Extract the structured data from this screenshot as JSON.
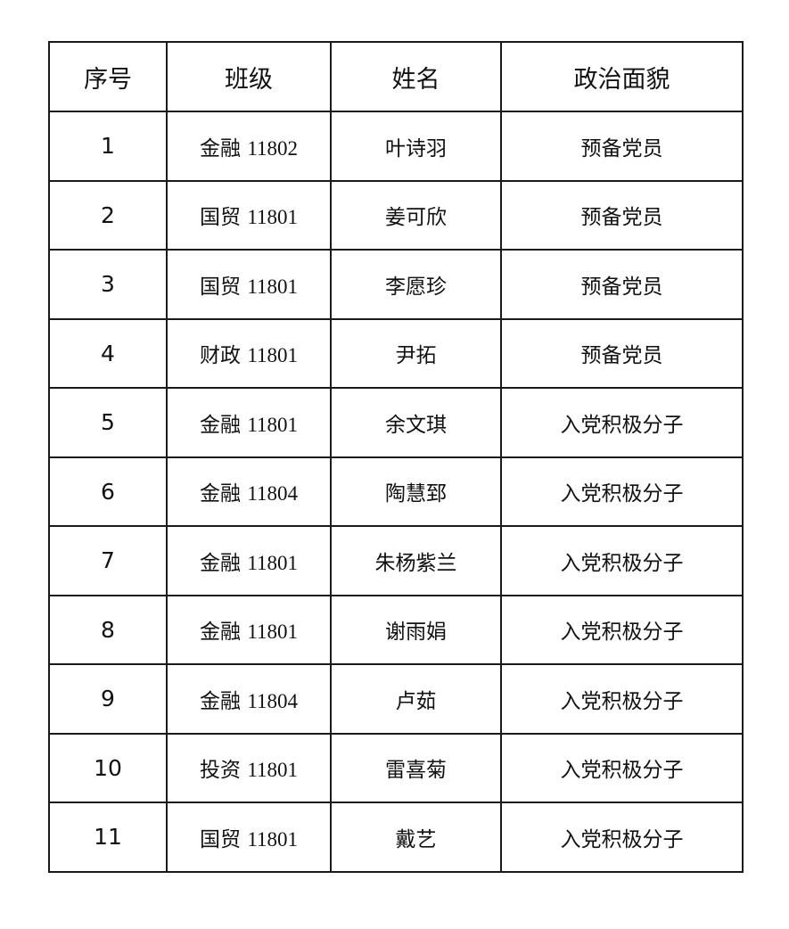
{
  "table": {
    "headers": [
      "序号",
      "班级",
      "姓名",
      "政治面貌"
    ],
    "rows": [
      {
        "index": "1",
        "class_major": "金融",
        "class_num": "11802",
        "name": "叶诗羽",
        "status": "预备党员"
      },
      {
        "index": "2",
        "class_major": "国贸",
        "class_num": "11801",
        "name": "姜可欣",
        "status": "预备党员"
      },
      {
        "index": "3",
        "class_major": "国贸",
        "class_num": "11801",
        "name": "李愿珍",
        "status": "预备党员"
      },
      {
        "index": "4",
        "class_major": "财政",
        "class_num": "11801",
        "name": "尹拓",
        "status": "预备党员"
      },
      {
        "index": "5",
        "class_major": "金融",
        "class_num": "11801",
        "name": "余文琪",
        "status": "入党积极分子"
      },
      {
        "index": "6",
        "class_major": "金融",
        "class_num": "11804",
        "name": "陶慧郅",
        "status": "入党积极分子"
      },
      {
        "index": "7",
        "class_major": "金融",
        "class_num": "11801",
        "name": "朱杨紫兰",
        "status": "入党积极分子"
      },
      {
        "index": "8",
        "class_major": "金融",
        "class_num": "11801",
        "name": "谢雨娟",
        "status": "入党积极分子"
      },
      {
        "index": "9",
        "class_major": "金融",
        "class_num": "11804",
        "name": "卢茹",
        "status": "入党积极分子"
      },
      {
        "index": "10",
        "class_major": "投资",
        "class_num": "11801",
        "name": "雷喜菊",
        "status": "入党积极分子"
      },
      {
        "index": "11",
        "class_major": "国贸",
        "class_num": "11801",
        "name": "戴艺",
        "status": "入党积极分子"
      }
    ]
  }
}
